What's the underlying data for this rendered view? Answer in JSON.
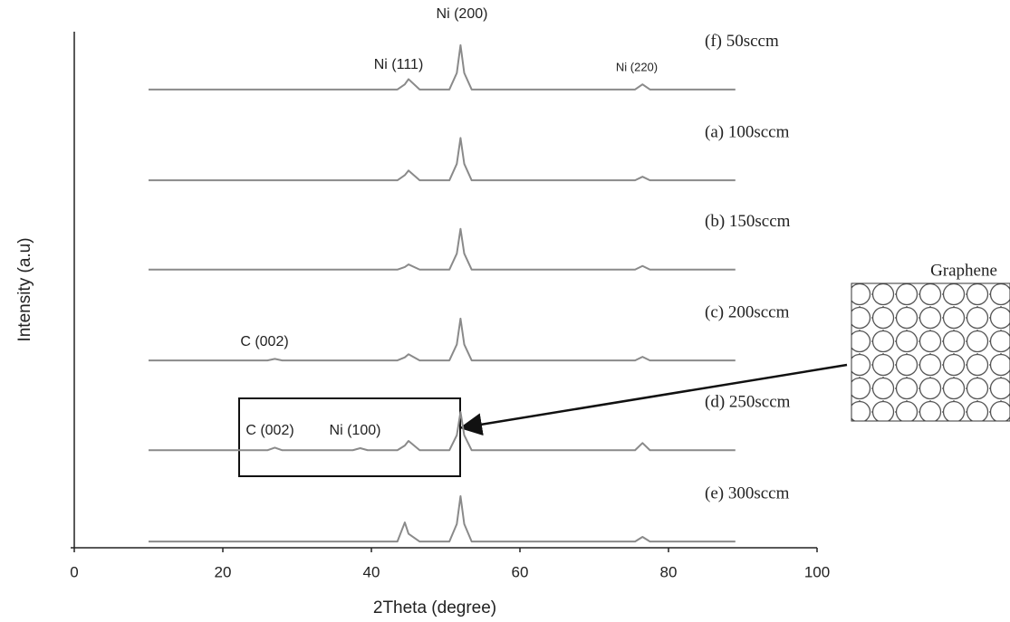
{
  "chart_data": {
    "type": "line",
    "xlabel": "2Theta (degree)",
    "ylabel": "Intensity (a.u)",
    "xlim": [
      0,
      100
    ],
    "xticks": [
      0,
      20,
      40,
      60,
      80,
      100
    ],
    "ylim": [
      0,
      100
    ],
    "x": [
      10,
      26,
      27,
      28,
      37.5,
      38.5,
      39.5,
      43.5,
      44.5,
      45,
      46.5,
      50.5,
      51.5,
      52,
      52.5,
      53.5,
      75.5,
      76.5,
      77.5,
      89
    ],
    "series": [
      {
        "name": "(f)  50sccm",
        "color": "#8a8a8a",
        "values": [
          88.8,
          88.8,
          88.8,
          88.8,
          88.8,
          88.8,
          88.8,
          88.8,
          89.8,
          90.8,
          88.8,
          88.8,
          92,
          97.4,
          92,
          88.8,
          88.8,
          89.8,
          88.8,
          88.8
        ]
      },
      {
        "name": "(a)  100sccm",
        "color": "#8a8a8a",
        "values": [
          71.2,
          71.2,
          71.2,
          71.2,
          71.2,
          71.2,
          71.2,
          71.2,
          72.2,
          73.1,
          71.2,
          71.2,
          74.4,
          79.4,
          74.4,
          71.2,
          71.2,
          71.9,
          71.2,
          71.2
        ]
      },
      {
        "name": "(b)  150sccm",
        "color": "#8a8a8a",
        "values": [
          53.9,
          53.9,
          53.9,
          53.9,
          53.9,
          53.9,
          53.9,
          53.9,
          54.4,
          54.9,
          53.9,
          53.9,
          57,
          61.8,
          57,
          53.9,
          53.9,
          54.6,
          53.9,
          53.9
        ]
      },
      {
        "name": "(c)  200sccm",
        "color": "#8a8a8a",
        "values": [
          36.3,
          36.3,
          36.6,
          36.3,
          36.3,
          36.3,
          36.3,
          36.3,
          36.9,
          37.5,
          36.3,
          36.3,
          39.4,
          44.4,
          39.4,
          36.3,
          36.3,
          37,
          36.3,
          36.3
        ]
      },
      {
        "name": "(d)  250sccm",
        "color": "#8a8a8a",
        "values": [
          18.9,
          18.9,
          19.4,
          18.9,
          18.9,
          19.3,
          18.9,
          18.9,
          19.8,
          20.7,
          18.9,
          18.9,
          21.8,
          26.3,
          21.8,
          18.9,
          18.9,
          20.3,
          18.9,
          18.9
        ]
      },
      {
        "name": "(e)  300sccm",
        "color": "#8a8a8a",
        "values": [
          1.2,
          1.2,
          1.2,
          1.2,
          1.2,
          1.2,
          1.2,
          1.2,
          4.9,
          2.7,
          1.2,
          1.2,
          4.6,
          10,
          4.6,
          1.2,
          1.2,
          2.1,
          1.2,
          1.2
        ]
      }
    ],
    "annotations": [
      "Ni (200)",
      "Ni (111)",
      "Ni (220)",
      "C (002)",
      "C (002)",
      "Ni  (100)",
      "Graphene"
    ]
  }
}
